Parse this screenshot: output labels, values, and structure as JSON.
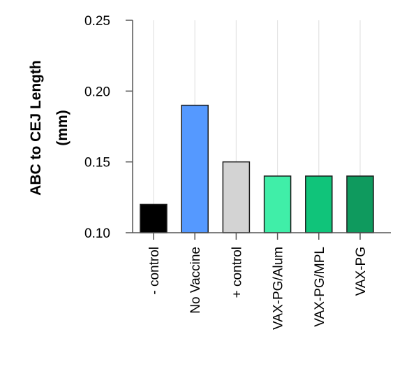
{
  "chart_data": {
    "type": "bar",
    "categories": [
      "- control",
      "No Vaccine",
      "+ control",
      "VAX-PG/Alum",
      "VAX-PG/MPL",
      "VAX-PG"
    ],
    "values": [
      0.12,
      0.19,
      0.15,
      0.14,
      0.14,
      0.14
    ],
    "colors": [
      "#000000",
      "#5599ff",
      "#d3d3d3",
      "#40eea8",
      "#10c47a",
      "#0f9a5e"
    ],
    "ylabel_line1": "ABC to CEJ  Length",
    "ylabel_line2": "(mm)",
    "ylim": [
      0.1,
      0.25
    ],
    "yticks": [
      0.1,
      0.15,
      0.2,
      0.25
    ],
    "ytick_labels": [
      "0.10",
      "0.15",
      "0.20",
      "0.25"
    ],
    "grid": "vertical"
  }
}
